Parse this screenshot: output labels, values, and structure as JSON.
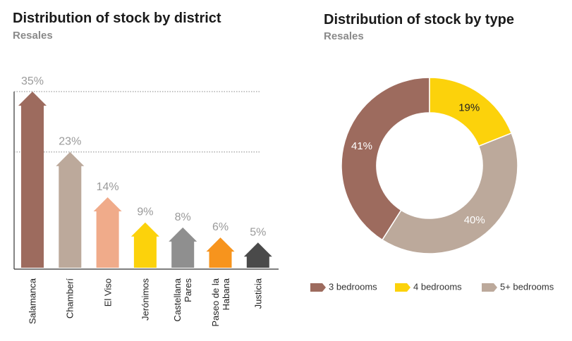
{
  "chart_data": [
    {
      "type": "bar",
      "title": "Distribution of stock by district",
      "subtitle": "Resales",
      "categories": [
        "Salamanca",
        "Chamberí",
        "El Viso",
        "Jerónimos",
        "Castellana Pares",
        "Paseo de la Habana",
        "Justicia"
      ],
      "values": [
        35,
        23,
        14,
        9,
        8,
        6,
        5
      ],
      "value_labels": [
        "35%",
        "23%",
        "14%",
        "9%",
        "8%",
        "6%",
        "5%"
      ],
      "colors": [
        "#9d6b5e",
        "#bca99b",
        "#f0ab8a",
        "#fcd20b",
        "#8f8f8f",
        "#f7941d",
        "#4a4a4a"
      ]
    },
    {
      "type": "donut",
      "title": "Distribution of stock by type",
      "subtitle": "Resales",
      "categories": [
        "3 bedrooms",
        "4 bedrooms",
        "5+ bedrooms"
      ],
      "values": [
        41,
        19,
        40
      ],
      "value_labels": [
        "41%",
        "19%",
        "40%"
      ],
      "colors": [
        "#9d6b5e",
        "#fcd20b",
        "#bca99b"
      ]
    }
  ]
}
